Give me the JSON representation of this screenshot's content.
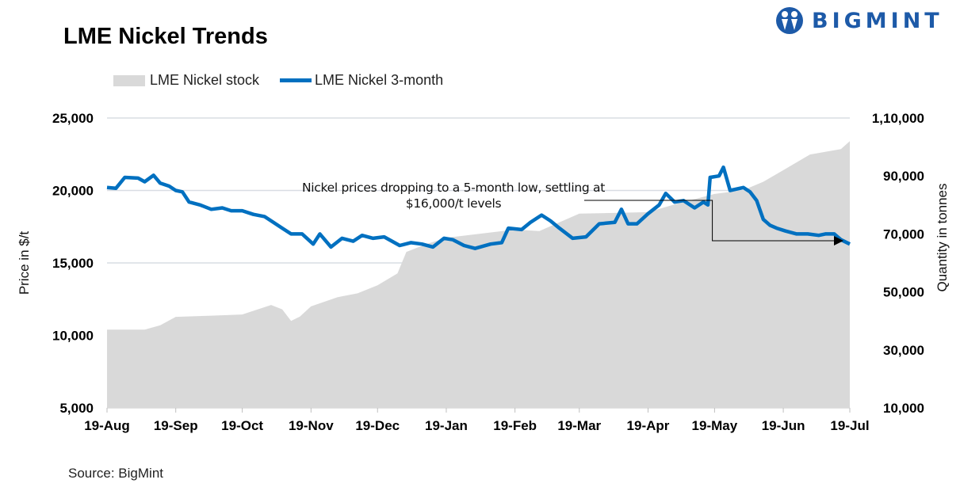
{
  "title": "LME Nickel Trends",
  "logo": {
    "text": "BIGMINT",
    "color": "#1d5aa8"
  },
  "source": "Source: BigMint",
  "chart_data": {
    "type": "line+area",
    "title": "LME Nickel Trends",
    "legend_position": "top-left",
    "grid": true,
    "x_tick_labels": [
      "19-Aug",
      "19-Sep",
      "19-Oct",
      "19-Nov",
      "19-Dec",
      "19-Jan",
      "19-Feb",
      "19-Mar",
      "19-Apr",
      "19-May",
      "19-Jun",
      "19-Jul"
    ],
    "x_ticks": [
      "2019-08-19",
      "2019-09-19",
      "2019-10-19",
      "2019-11-19",
      "2019-12-19",
      "2020-01-19",
      "2020-02-19",
      "2020-03-19",
      "2020-04-19",
      "2020-05-19",
      "2020-06-19",
      "2020-07-19"
    ],
    "xlim": [
      "2019-08-19",
      "2020-07-19"
    ],
    "y_left": {
      "label": "Price in $/t",
      "lim": [
        5000,
        25000
      ],
      "ticks": [
        5000,
        10000,
        15000,
        20000,
        25000
      ],
      "tick_labels": [
        "5,000",
        "10,000",
        "15,000",
        "20,000",
        "25,000"
      ]
    },
    "y_right": {
      "label": "Quantity in tonnes",
      "lim": [
        10000,
        110000
      ],
      "ticks": [
        10000,
        30000,
        50000,
        70000,
        90000,
        110000
      ],
      "tick_labels": [
        "10,000",
        "30,000",
        "50,000",
        "70,000",
        "90,000",
        "1,10,000"
      ]
    },
    "series": [
      {
        "name": "LME Nickel stock",
        "type": "area",
        "axis": "right",
        "color": "#d9d9d9",
        "points": [
          [
            "2019-08-19",
            37000
          ],
          [
            "2019-09-05",
            37000
          ],
          [
            "2019-09-12",
            38500
          ],
          [
            "2019-09-19",
            41400
          ],
          [
            "2019-10-05",
            41800
          ],
          [
            "2019-10-19",
            42200
          ],
          [
            "2019-11-01",
            45500
          ],
          [
            "2019-11-06",
            44000
          ],
          [
            "2019-11-10",
            40000
          ],
          [
            "2019-11-14",
            41500
          ],
          [
            "2019-11-19",
            45000
          ],
          [
            "2019-12-01",
            48200
          ],
          [
            "2019-12-10",
            49500
          ],
          [
            "2019-12-19",
            52300
          ],
          [
            "2019-12-28",
            56400
          ],
          [
            "2020-01-01",
            63800
          ],
          [
            "2020-01-10",
            66500
          ],
          [
            "2020-01-19",
            68700
          ],
          [
            "2020-02-19",
            71500
          ],
          [
            "2020-03-01",
            71000
          ],
          [
            "2020-03-19",
            77000
          ],
          [
            "2020-04-19",
            77500
          ],
          [
            "2020-05-01",
            80200
          ],
          [
            "2020-05-19",
            83800
          ],
          [
            "2020-06-01",
            85100
          ],
          [
            "2020-06-10",
            88000
          ],
          [
            "2020-06-19",
            92000
          ],
          [
            "2020-07-01",
            97400
          ],
          [
            "2020-07-15",
            99300
          ],
          [
            "2020-07-19",
            102000
          ]
        ]
      },
      {
        "name": "LME Nickel 3-month",
        "type": "line",
        "axis": "left",
        "color": "#0070c0",
        "points": [
          [
            "2019-08-19",
            20200
          ],
          [
            "2019-08-23",
            20150
          ],
          [
            "2019-08-27",
            20900
          ],
          [
            "2019-09-02",
            20850
          ],
          [
            "2019-09-05",
            20600
          ],
          [
            "2019-09-09",
            21050
          ],
          [
            "2019-09-12",
            20500
          ],
          [
            "2019-09-16",
            20300
          ],
          [
            "2019-09-19",
            20000
          ],
          [
            "2019-09-22",
            19900
          ],
          [
            "2019-09-25",
            19200
          ],
          [
            "2019-09-30",
            19000
          ],
          [
            "2019-10-05",
            18700
          ],
          [
            "2019-10-10",
            18800
          ],
          [
            "2019-10-14",
            18600
          ],
          [
            "2019-10-19",
            18600
          ],
          [
            "2019-10-24",
            18350
          ],
          [
            "2019-10-29",
            18200
          ],
          [
            "2019-11-01",
            17900
          ],
          [
            "2019-11-06",
            17400
          ],
          [
            "2019-11-10",
            17000
          ],
          [
            "2019-11-15",
            17000
          ],
          [
            "2019-11-20",
            16300
          ],
          [
            "2019-11-23",
            17000
          ],
          [
            "2019-11-28",
            16100
          ],
          [
            "2019-12-03",
            16700
          ],
          [
            "2019-12-08",
            16500
          ],
          [
            "2019-12-12",
            16900
          ],
          [
            "2019-12-17",
            16700
          ],
          [
            "2019-12-22",
            16800
          ],
          [
            "2019-12-29",
            16200
          ],
          [
            "2020-01-03",
            16400
          ],
          [
            "2020-01-08",
            16300
          ],
          [
            "2020-01-13",
            16100
          ],
          [
            "2020-01-18",
            16700
          ],
          [
            "2020-01-22",
            16600
          ],
          [
            "2020-01-27",
            16200
          ],
          [
            "2020-02-01",
            16000
          ],
          [
            "2020-02-08",
            16300
          ],
          [
            "2020-02-13",
            16400
          ],
          [
            "2020-02-16",
            17400
          ],
          [
            "2020-02-22",
            17300
          ],
          [
            "2020-02-26",
            17800
          ],
          [
            "2020-03-02",
            18300
          ],
          [
            "2020-03-06",
            17900
          ],
          [
            "2020-03-10",
            17400
          ],
          [
            "2020-03-16",
            16700
          ],
          [
            "2020-03-22",
            16800
          ],
          [
            "2020-03-28",
            17700
          ],
          [
            "2020-04-04",
            17800
          ],
          [
            "2020-04-07",
            18700
          ],
          [
            "2020-04-10",
            17700
          ],
          [
            "2020-04-14",
            17700
          ],
          [
            "2020-04-19",
            18400
          ],
          [
            "2020-04-24",
            19000
          ],
          [
            "2020-04-27",
            19800
          ],
          [
            "2020-05-01",
            19200
          ],
          [
            "2020-05-05",
            19300
          ],
          [
            "2020-05-10",
            18800
          ],
          [
            "2020-05-14",
            19200
          ],
          [
            "2020-05-16",
            19000
          ],
          [
            "2020-05-17",
            20900
          ],
          [
            "2020-05-21",
            21000
          ],
          [
            "2020-05-23",
            21600
          ],
          [
            "2020-05-26",
            20000
          ],
          [
            "2020-06-01",
            20200
          ],
          [
            "2020-06-04",
            19900
          ],
          [
            "2020-06-07",
            19300
          ],
          [
            "2020-06-10",
            18000
          ],
          [
            "2020-06-13",
            17600
          ],
          [
            "2020-06-16",
            17400
          ],
          [
            "2020-06-20",
            17200
          ],
          [
            "2020-06-25",
            17000
          ],
          [
            "2020-06-30",
            17000
          ],
          [
            "2020-07-05",
            16900
          ],
          [
            "2020-07-08",
            17000
          ],
          [
            "2020-07-12",
            17000
          ],
          [
            "2020-07-15",
            16600
          ],
          [
            "2020-07-19",
            16300
          ]
        ]
      }
    ],
    "annotations": [
      {
        "text_line1": "Nickel prices dropping to a 5-month low, settling at",
        "text_line2": "$16,000/t levels",
        "from_date": "2020-05-18",
        "to_date": "2020-07-19"
      }
    ]
  }
}
